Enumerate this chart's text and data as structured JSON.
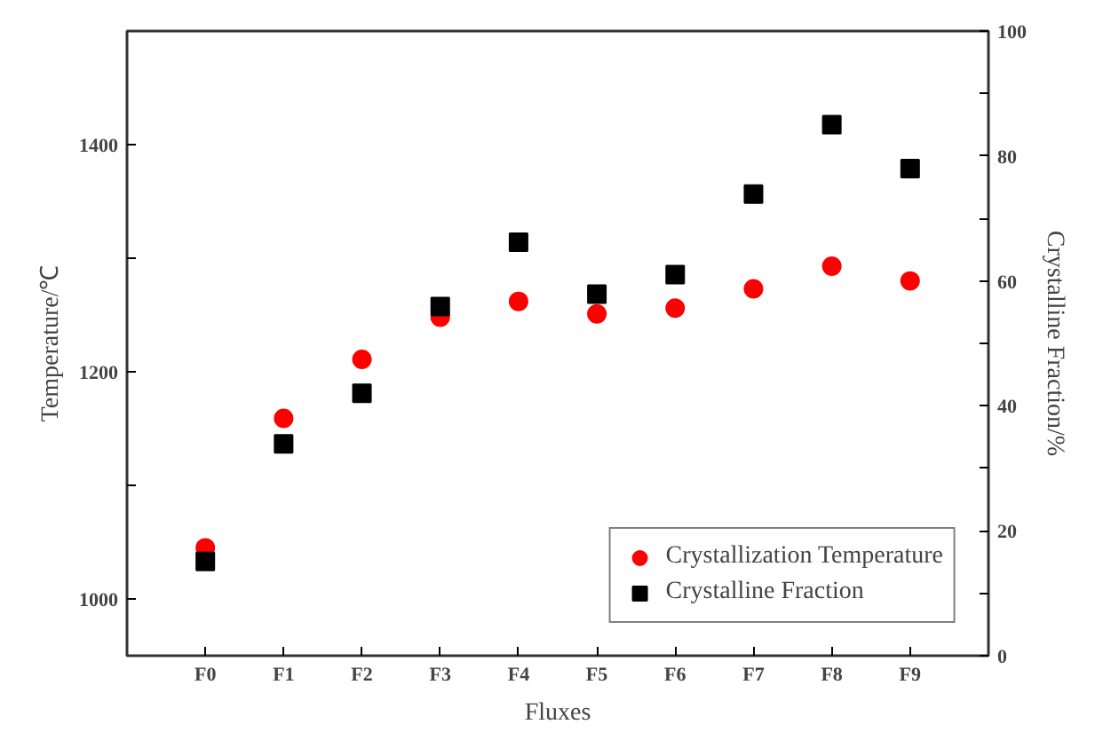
{
  "chart_data": {
    "type": "scatter",
    "xlabel": "Fluxes",
    "ylabel": "Temperature/℃",
    "y2label": "Crystalline Fraction/%",
    "categories": [
      "F0",
      "F1",
      "F2",
      "F3",
      "F4",
      "F5",
      "F6",
      "F7",
      "F8",
      "F9"
    ],
    "series": [
      {
        "name": "Crystallization Temperature",
        "color": "#ff0000",
        "marker": "circle",
        "values": [
          1045,
          1159,
          1211,
          1248,
          1262,
          1251,
          1256,
          1273,
          1293,
          1280
        ]
      },
      {
        "name": "Crystalline Fraction",
        "color": "#000000",
        "marker": "square",
        "axis": "y2",
        "values": [
          15.1,
          33.9,
          42,
          55.9,
          66.2,
          57.9,
          61,
          73.9,
          85,
          78
        ]
      }
    ],
    "ylim": [
      950,
      1500
    ],
    "yticks": [
      1000,
      {
        "value": 1100,
        "label": null
      },
      1200,
      {
        "value": 1300,
        "label": null
      },
      1400
    ],
    "y2lim": [
      0,
      100
    ],
    "y2ticks": [
      0,
      {
        "value": 10,
        "label": null
      },
      20,
      {
        "value": 30,
        "label": null
      },
      40,
      {
        "value": 50,
        "label": null
      },
      60,
      {
        "value": 70,
        "label": null
      },
      80,
      {
        "value": 90,
        "label": null
      },
      100
    ],
    "grid": false,
    "legend": "bottom right"
  }
}
